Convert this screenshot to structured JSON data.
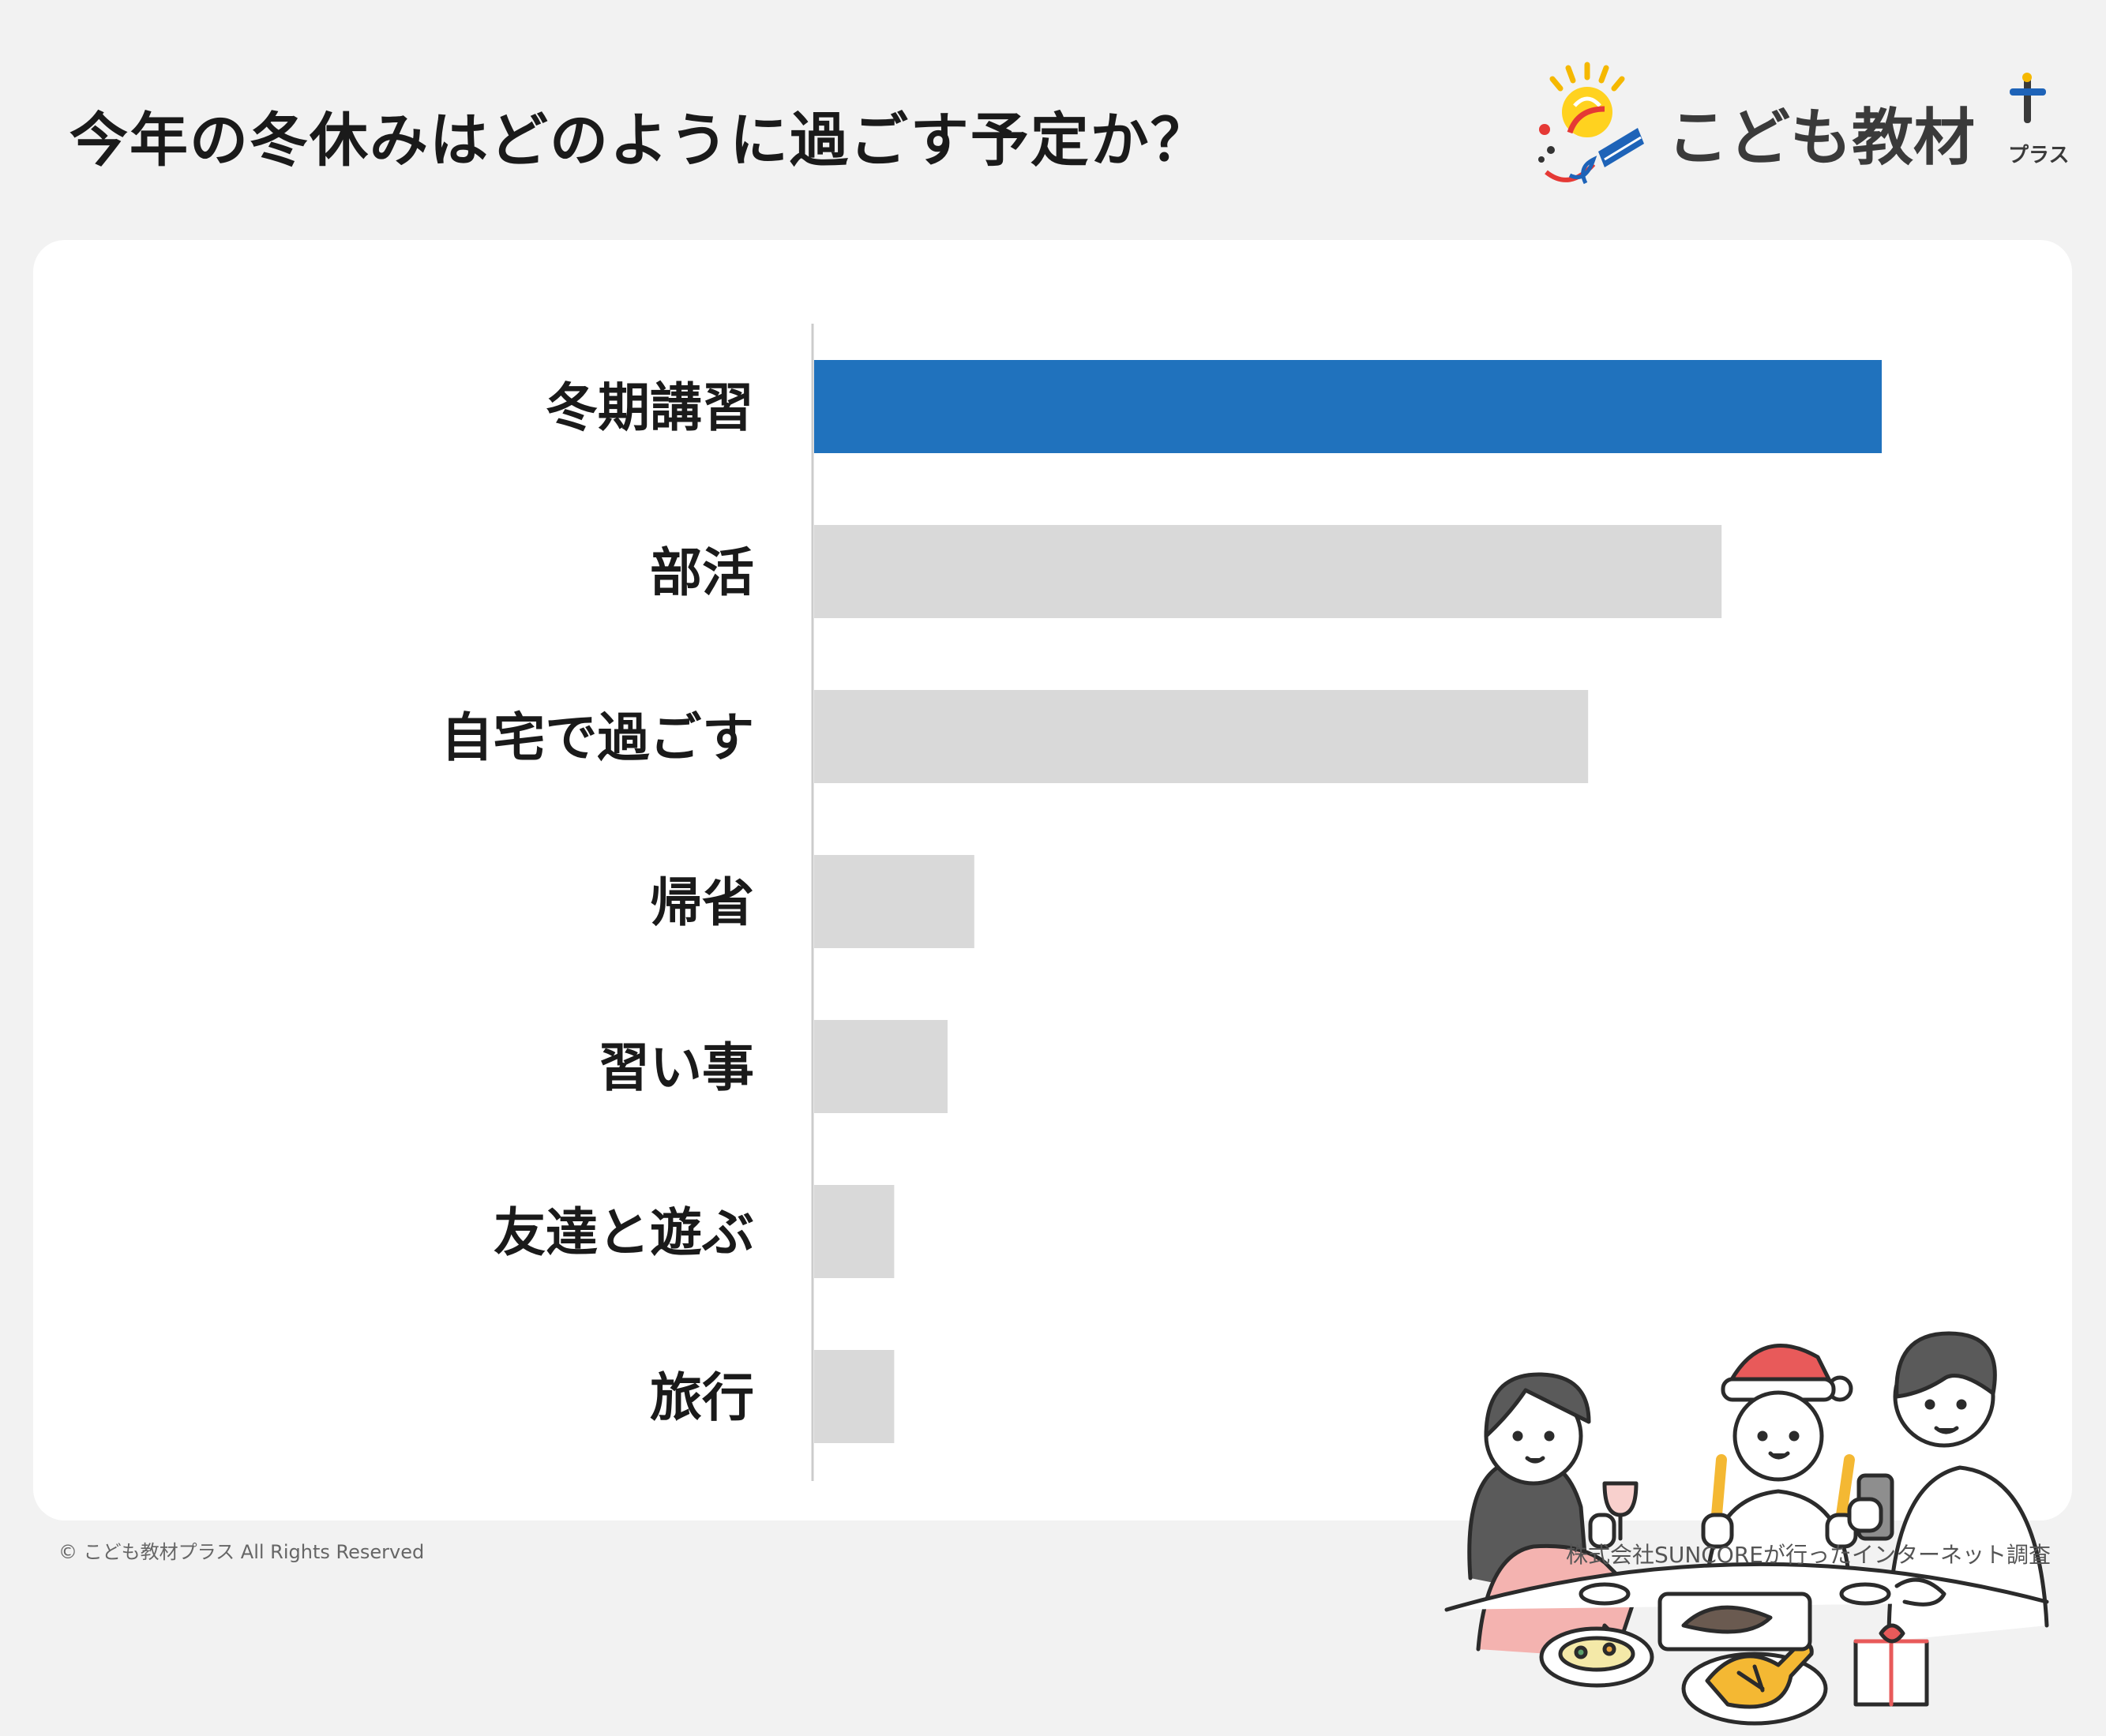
{
  "title": "今年の冬休みはどのように過ごす予定か？",
  "logo": {
    "text": "こども教材",
    "sub": "プラス"
  },
  "chart_data": {
    "type": "bar",
    "orientation": "horizontal",
    "categories": [
      "冬期講習",
      "部活",
      "自宅で過ごす",
      "帰省",
      "習い事",
      "友達と遊ぶ",
      "旅行"
    ],
    "values": [
      100,
      85,
      72.5,
      15,
      12.5,
      7.5,
      7.5
    ],
    "xlim": [
      0,
      100
    ],
    "highlight_index": 0,
    "colors": {
      "highlight": "#2072bd",
      "default": "#d9d9d9",
      "axis": "#cccccc"
    },
    "grid": false,
    "legend": "none"
  },
  "footer": {
    "copyright": "© こども教材プラス All Rights Reserved",
    "source": "株式会社SUNCOREが行ったインターネット調査"
  },
  "illustration": "family-christmas-dinner"
}
